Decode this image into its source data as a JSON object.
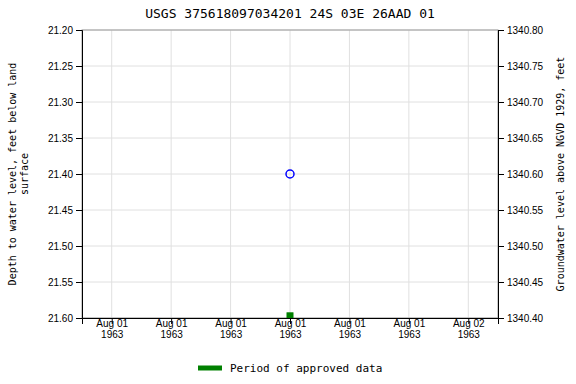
{
  "chart_data": {
    "type": "scatter",
    "title": "USGS 375618097034201 24S 03E 26AAD 01",
    "y_label": "Depth to water level, feet below land\nsurface",
    "y2_label": "Groundwater level above NGVD 1929, feet",
    "categories": [
      "Aug 01\n1963",
      "Aug 01\n1963",
      "Aug 01\n1963",
      "Aug 01\n1963",
      "Aug 01\n1963",
      "Aug 01\n1963",
      "Aug 02\n1963"
    ],
    "series": [
      {
        "color": "#0000ff",
        "marker": "circle",
        "values": [
          null,
          null,
          null,
          21.4,
          null,
          null,
          null
        ]
      },
      {
        "name": "Period of approved data",
        "color": "#008000",
        "marker": "square",
        "values": [
          null,
          null,
          null,
          21.597,
          null,
          null,
          null
        ]
      }
    ],
    "ylim": [
      21.6,
      21.2
    ],
    "yticks": [
      {
        "value": 21.2,
        "label": "21.20"
      },
      21.25,
      {
        "value": 21.3,
        "label": "21.30"
      },
      21.35,
      {
        "value": 21.4,
        "label": "21.40"
      },
      21.45,
      {
        "value": 21.5,
        "label": "21.50"
      },
      21.55,
      {
        "value": 21.6,
        "label": "21.60"
      }
    ],
    "y2lim": [
      1340.4,
      1340.8
    ],
    "y2ticks": [
      {
        "value": 1340.8,
        "label": "1340.80"
      },
      1340.75,
      {
        "value": 1340.7,
        "label": "1340.70"
      },
      1340.65,
      {
        "value": 1340.6,
        "label": "1340.60"
      },
      1340.55,
      {
        "value": 1340.5,
        "label": "1340.50"
      },
      1340.45,
      {
        "value": 1340.4,
        "label": "1340.40"
      }
    ],
    "grid": true
  }
}
